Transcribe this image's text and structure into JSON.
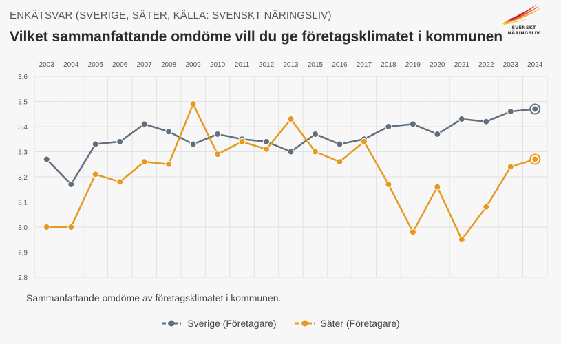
{
  "header": {
    "supertitle": "ENKÄTSVAR (SVERIGE, SÄTER, KÄLLA: SVENSKT NÄRINGSLIV)",
    "title": "Vilket sammanfattande omdöme vill du ge företagsklimatet i kommunen",
    "logo_text": "SVENSKT NÄRINGSLIV"
  },
  "caption": "Sammanfattande omdöme av företagsklimatet i kommunen.",
  "colors": {
    "sverige": "#636e7b",
    "sater": "#e59a1f",
    "grid": "#e2e2e2",
    "axis_text": "#555555"
  },
  "chart_data": {
    "type": "line",
    "categories": [
      "2003",
      "2004",
      "2005",
      "2006",
      "2007",
      "2008",
      "2009",
      "2010",
      "2011",
      "2012",
      "2013",
      "2015",
      "2016",
      "2017",
      "2018",
      "2019",
      "2020",
      "2021",
      "2022",
      "2023",
      "2024"
    ],
    "y_ticks": [
      "2,8",
      "2,9",
      "3,0",
      "3,1",
      "3,2",
      "3,3",
      "3,4",
      "3,5",
      "3,6"
    ],
    "ylim": [
      2.8,
      3.6
    ],
    "grid": true,
    "legend_position": "bottom-center",
    "series": [
      {
        "name": "Sverige (Företagare)",
        "color": "#636e7b",
        "values": [
          3.27,
          3.17,
          3.33,
          3.34,
          3.41,
          3.38,
          3.33,
          3.37,
          3.35,
          3.34,
          3.3,
          3.37,
          3.33,
          3.35,
          3.4,
          3.41,
          3.37,
          3.43,
          3.42,
          3.46,
          3.47
        ]
      },
      {
        "name": "Säter (Företagare)",
        "color": "#e59a1f",
        "values": [
          3.0,
          3.0,
          3.21,
          3.18,
          3.26,
          3.25,
          3.49,
          3.29,
          3.34,
          3.31,
          3.43,
          3.3,
          3.26,
          3.34,
          3.17,
          2.98,
          3.16,
          2.95,
          3.08,
          3.24,
          3.27
        ]
      }
    ]
  }
}
